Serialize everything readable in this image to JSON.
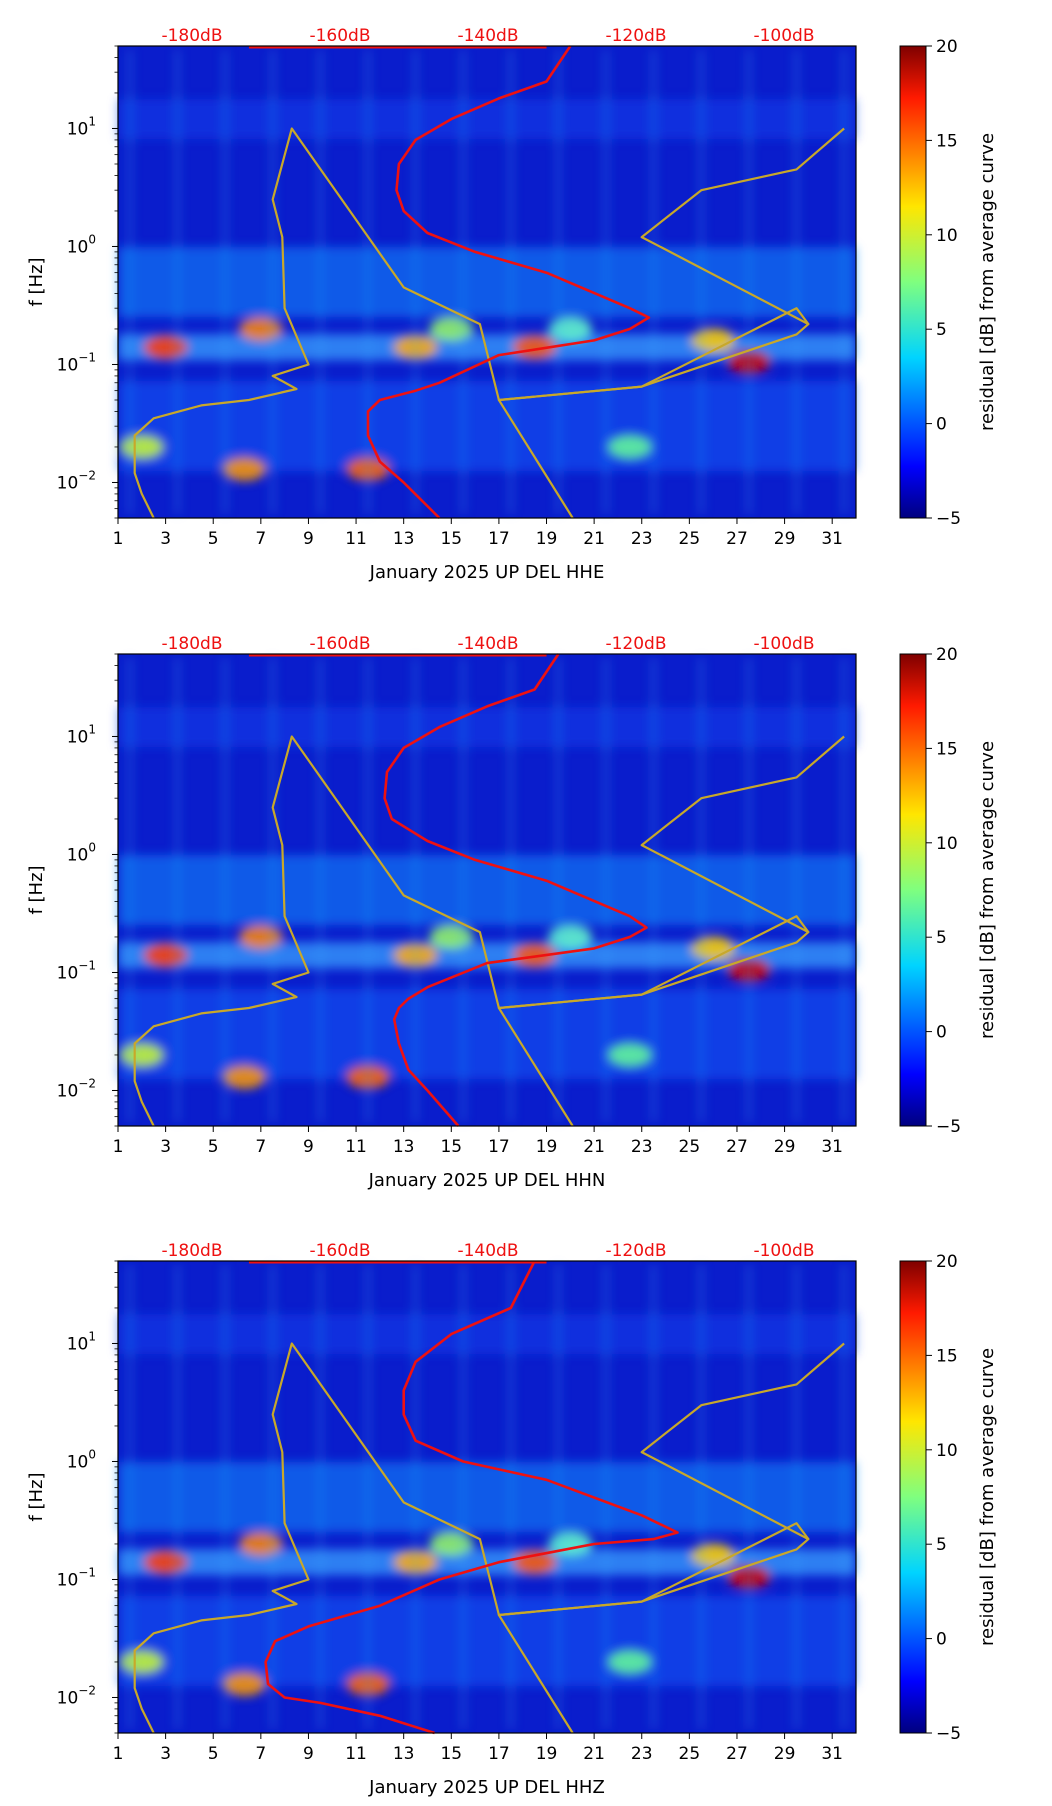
{
  "chart_data": [
    {
      "type": "heatmap",
      "title": "",
      "xlabel": "January 2025 UP DEL  HHE",
      "ylabel": "f [Hz]",
      "x_ticks": [
        1,
        3,
        5,
        7,
        9,
        11,
        13,
        15,
        17,
        19,
        21,
        23,
        25,
        27,
        29,
        31
      ],
      "xlim": [
        1,
        32
      ],
      "y_scale": "log",
      "ylim": [
        0.005,
        50
      ],
      "y_ticks": [
        {
          "value": 0.01,
          "base": "10",
          "exp": "−2"
        },
        {
          "value": 0.1,
          "base": "10",
          "exp": "−1"
        },
        {
          "value": 1,
          "base": "10",
          "exp": "0"
        },
        {
          "value": 10,
          "base": "10",
          "exp": "1"
        }
      ],
      "top_reference_labels": [
        "-180dB",
        "-160dB",
        "-140dB",
        "-120dB",
        "-100dB"
      ],
      "colorbar": {
        "label": "residual [dB] from average curve",
        "range": [
          -5,
          20
        ],
        "ticks": [
          "−5",
          "0",
          "5",
          "10",
          "15",
          "20"
        ]
      },
      "series": [
        {
          "name": "noise model bounds",
          "color": "#c8a82a",
          "x": [
            2.5,
            2.0,
            1.7,
            1.7,
            2.5,
            4.5,
            6.5,
            8.5,
            7.5,
            9.0,
            8.0,
            7.9,
            7.5,
            8.3,
            13,
            16.2,
            17,
            23,
            29.5,
            30
          ],
          "y": [
            0.005,
            0.008,
            0.012,
            0.025,
            0.035,
            0.045,
            0.05,
            0.062,
            0.08,
            0.1,
            0.3,
            1.2,
            2.5,
            10,
            0.45,
            0.22,
            0.05,
            0.065,
            0.3,
            0.22
          ]
        },
        {
          "name": "noise model bounds upper",
          "color": "#c8a82a",
          "x": [
            20.1,
            17,
            23,
            29.5,
            30,
            23,
            25.5,
            29.5,
            31.5
          ],
          "y": [
            0.005,
            0.05,
            0.065,
            0.18,
            0.22,
            1.2,
            3,
            4.5,
            10
          ]
        },
        {
          "name": "median PSD",
          "color": "#ee1111",
          "x": [
            14.5,
            13,
            12,
            11.5,
            11.5,
            12,
            13.5,
            14.5,
            17,
            21,
            22.5,
            23.3,
            22.5,
            19,
            16,
            14,
            13,
            12.7,
            12.8,
            13.5,
            15,
            17,
            19,
            20
          ],
          "y": [
            0.005,
            0.01,
            0.015,
            0.025,
            0.04,
            0.05,
            0.06,
            0.07,
            0.12,
            0.16,
            0.2,
            0.25,
            0.3,
            0.6,
            0.9,
            1.3,
            2,
            3,
            5,
            8,
            12,
            18,
            25,
            50
          ]
        }
      ]
    },
    {
      "type": "heatmap",
      "title": "",
      "xlabel": "January 2025 UP DEL  HHN",
      "ylabel": "f [Hz]",
      "x_ticks": [
        1,
        3,
        5,
        7,
        9,
        11,
        13,
        15,
        17,
        19,
        21,
        23,
        25,
        27,
        29,
        31
      ],
      "xlim": [
        1,
        32
      ],
      "y_scale": "log",
      "ylim": [
        0.005,
        50
      ],
      "y_ticks": [
        {
          "value": 0.01,
          "base": "10",
          "exp": "−2"
        },
        {
          "value": 0.1,
          "base": "10",
          "exp": "−1"
        },
        {
          "value": 1,
          "base": "10",
          "exp": "0"
        },
        {
          "value": 10,
          "base": "10",
          "exp": "1"
        }
      ],
      "top_reference_labels": [
        "-180dB",
        "-160dB",
        "-140dB",
        "-120dB",
        "-100dB"
      ],
      "colorbar": {
        "label": "residual [dB] from average curve",
        "range": [
          -5,
          20
        ],
        "ticks": [
          "−5",
          "0",
          "5",
          "10",
          "15",
          "20"
        ]
      },
      "series": [
        {
          "name": "noise model bounds",
          "color": "#c8a82a",
          "x": [
            2.5,
            2.0,
            1.7,
            1.7,
            2.5,
            4.5,
            6.5,
            8.5,
            7.5,
            9.0,
            8.0,
            7.9,
            7.5,
            8.3,
            13,
            16.2,
            17,
            23,
            29.5,
            30
          ],
          "y": [
            0.005,
            0.008,
            0.012,
            0.025,
            0.035,
            0.045,
            0.05,
            0.062,
            0.08,
            0.1,
            0.3,
            1.2,
            2.5,
            10,
            0.45,
            0.22,
            0.05,
            0.065,
            0.3,
            0.22
          ]
        },
        {
          "name": "noise model bounds upper",
          "color": "#c8a82a",
          "x": [
            20.1,
            17,
            23,
            29.5,
            30,
            23,
            25.5,
            29.5,
            31.5
          ],
          "y": [
            0.005,
            0.05,
            0.065,
            0.18,
            0.22,
            1.2,
            3,
            4.5,
            10
          ]
        },
        {
          "name": "median PSD",
          "color": "#ee1111",
          "x": [
            15.3,
            14,
            13.2,
            12.8,
            12.6,
            12.8,
            13.2,
            14,
            16.5,
            21,
            22.5,
            23.2,
            22.5,
            19,
            16,
            14,
            12.5,
            12.2,
            12.3,
            13,
            14.5,
            16.5,
            18.5,
            19.5
          ],
          "y": [
            0.005,
            0.01,
            0.015,
            0.025,
            0.04,
            0.05,
            0.06,
            0.075,
            0.12,
            0.16,
            0.2,
            0.24,
            0.3,
            0.6,
            0.9,
            1.3,
            2,
            3,
            5,
            8,
            12,
            18,
            25,
            50
          ]
        }
      ]
    },
    {
      "type": "heatmap",
      "title": "",
      "xlabel": "January 2025 UP DEL  HHZ",
      "ylabel": "f [Hz]",
      "x_ticks": [
        1,
        3,
        5,
        7,
        9,
        11,
        13,
        15,
        17,
        19,
        21,
        23,
        25,
        27,
        29,
        31
      ],
      "xlim": [
        1,
        32
      ],
      "y_scale": "log",
      "ylim": [
        0.005,
        50
      ],
      "y_ticks": [
        {
          "value": 0.01,
          "base": "10",
          "exp": "−2"
        },
        {
          "value": 0.1,
          "base": "10",
          "exp": "−1"
        },
        {
          "value": 1,
          "base": "10",
          "exp": "0"
        },
        {
          "value": 10,
          "base": "10",
          "exp": "1"
        }
      ],
      "top_reference_labels": [
        "-180dB",
        "-160dB",
        "-140dB",
        "-120dB",
        "-100dB"
      ],
      "colorbar": {
        "label": "residual [dB] from average curve",
        "range": [
          -5,
          20
        ],
        "ticks": [
          "−5",
          "0",
          "5",
          "10",
          "15",
          "20"
        ]
      },
      "series": [
        {
          "name": "noise model bounds",
          "color": "#c8a82a",
          "x": [
            2.5,
            2.0,
            1.7,
            1.7,
            2.5,
            4.5,
            6.5,
            8.5,
            7.5,
            9.0,
            8.0,
            7.9,
            7.5,
            8.3,
            13,
            16.2,
            17,
            23,
            29.5,
            30
          ],
          "y": [
            0.005,
            0.008,
            0.012,
            0.025,
            0.035,
            0.045,
            0.05,
            0.062,
            0.08,
            0.1,
            0.3,
            1.2,
            2.5,
            10,
            0.45,
            0.22,
            0.05,
            0.065,
            0.3,
            0.22
          ]
        },
        {
          "name": "noise model bounds upper",
          "color": "#c8a82a",
          "x": [
            20.1,
            17,
            23,
            29.5,
            30,
            23,
            25.5,
            29.5,
            31.5
          ],
          "y": [
            0.005,
            0.05,
            0.065,
            0.18,
            0.22,
            1.2,
            3,
            4.5,
            10
          ]
        },
        {
          "name": "median PSD",
          "color": "#ee1111",
          "x": [
            14.3,
            12,
            9.5,
            8.0,
            7.3,
            7.2,
            7.6,
            9,
            12,
            14.5,
            17,
            21,
            23.5,
            24.5,
            23,
            19,
            15.5,
            13.5,
            13.0,
            13.0,
            13.5,
            15,
            17.5,
            18.5
          ],
          "y": [
            0.005,
            0.007,
            0.009,
            0.01,
            0.013,
            0.02,
            0.03,
            0.04,
            0.06,
            0.1,
            0.14,
            0.2,
            0.22,
            0.25,
            0.35,
            0.7,
            1.0,
            1.5,
            2.5,
            4,
            7,
            12,
            20,
            50
          ]
        }
      ]
    }
  ]
}
